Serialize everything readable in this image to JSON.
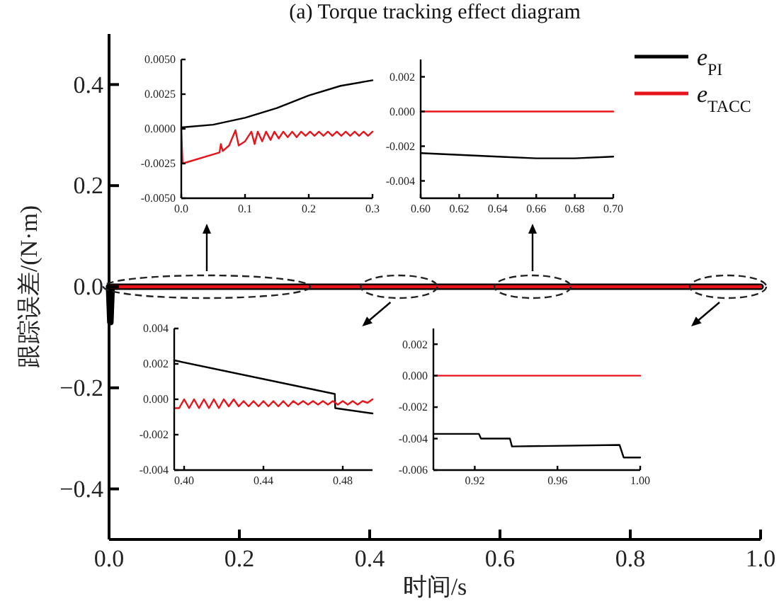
{
  "chart_data": [
    {
      "type": "line",
      "title": "(a) Torque tracking effect diagram",
      "xlabel": "时间/s",
      "ylabel": "跟踪误差/(N·m)",
      "legend": "top right",
      "xlim": [
        0,
        1
      ],
      "ylim": [
        -0.5,
        0.5
      ],
      "xticks": [
        {
          "value": 0,
          "label": "0.0"
        },
        0.2,
        0.4,
        0.6,
        0.8,
        {
          "value": 1,
          "label": "1.0"
        }
      ],
      "yticks": [
        0.4,
        0.2,
        {
          "value": 0,
          "label": "0.0"
        },
        {
          "value": -0.2,
          "label": "−0.2"
        },
        {
          "value": -0.4,
          "label": "−0.4"
        }
      ],
      "series": [
        {
          "name": "*e*$_{PI}$",
          "color": "#000000",
          "x": [
            0,
            0.002,
            0.004,
            1.0
          ],
          "values": [
            0,
            -0.07,
            0,
            0
          ]
        },
        {
          "name": "*e*$_{TACC}$",
          "color": "#e8141c",
          "x": [
            0,
            1.0
          ],
          "values": [
            0,
            0
          ]
        }
      ]
    },
    {
      "type": "line",
      "xlim": [
        0,
        0.3
      ],
      "ylim": [
        -0.005,
        0.005
      ],
      "xticks": [
        {
          "value": 0,
          "label": "0.0"
        },
        0.1,
        0.2,
        0.3
      ],
      "yticks": [
        {
          "value": 0.005,
          "label": "0.0050"
        },
        {
          "value": 0.0025,
          "label": "0.0025"
        },
        {
          "value": 0,
          "label": "0.0000"
        },
        {
          "value": -0.0025,
          "label": "-0.0025"
        },
        {
          "value": -0.005,
          "label": "-0.0050"
        }
      ],
      "series": [
        {
          "color": "#000000",
          "x": [
            0,
            0.05,
            0.1,
            0.15,
            0.2,
            0.25,
            0.3
          ],
          "values": [
            0.0001,
            0.0003,
            0.0008,
            0.0015,
            0.0024,
            0.0031,
            0.0035
          ]
        },
        {
          "color": "#e8141c",
          "x": [
            0,
            0.002,
            0.06,
            0.062,
            0.065,
            0.075,
            0.085,
            0.09,
            0.1,
            0.11,
            0.115,
            0.12,
            0.127,
            0.133,
            0.14,
            0.146,
            0.153,
            0.16,
            0.167,
            0.174,
            0.181,
            0.188,
            0.195,
            0.202,
            0.209,
            0.216,
            0.223,
            0.23,
            0.237,
            0.244,
            0.251,
            0.258,
            0.265,
            0.272,
            0.279,
            0.286,
            0.293,
            0.3
          ],
          "values": [
            0,
            -0.0025,
            -0.0017,
            -0.0011,
            -0.0016,
            -0.0012,
            -0.0001,
            -0.0012,
            -0.0009,
            -0.0002,
            -0.0011,
            -0.0002,
            -0.0009,
            -0.0002,
            -0.0008,
            -0.0002,
            -0.0007,
            -0.0002,
            -0.0006,
            -0.0002,
            -0.0006,
            -0.0002,
            -0.0005,
            -0.0002,
            -0.0005,
            -0.0002,
            -0.0005,
            -0.0002,
            -0.0005,
            -0.0002,
            -0.0005,
            -0.0002,
            -0.0005,
            -0.0002,
            -0.0005,
            -0.0002,
            -0.0005,
            -0.0002
          ]
        }
      ]
    },
    {
      "type": "line",
      "xlim": [
        0.6,
        0.7
      ],
      "ylim": [
        -0.005,
        0.003
      ],
      "xticks": [
        {
          "value": 0.6,
          "label": "0.60"
        },
        0.62,
        0.64,
        0.66,
        0.68,
        {
          "value": 0.7,
          "label": "0.70"
        }
      ],
      "yticks": [
        {
          "value": 0.002,
          "label": "0.002"
        },
        {
          "value": 0,
          "label": "0.000"
        },
        {
          "value": -0.002,
          "label": "-0.002"
        },
        {
          "value": -0.004,
          "label": "-0.004"
        }
      ],
      "series": [
        {
          "color": "#000000",
          "x": [
            0.6,
            0.62,
            0.64,
            0.66,
            0.68,
            0.7
          ],
          "values": [
            -0.0024,
            -0.0025,
            -0.0026,
            -0.0027,
            -0.0027,
            -0.0026
          ]
        },
        {
          "color": "#e8141c",
          "x": [
            0.6,
            0.7
          ],
          "values": [
            0,
            0
          ]
        }
      ]
    },
    {
      "type": "line",
      "xlim": [
        0.395,
        0.495
      ],
      "ylim": [
        -0.004,
        0.004
      ],
      "xticks": [
        {
          "value": 0.4,
          "label": "0.40"
        },
        0.44,
        0.48
      ],
      "yticks": [
        {
          "value": 0.004,
          "label": "0.004"
        },
        {
          "value": 0.002,
          "label": "0.002"
        },
        {
          "value": 0,
          "label": "0.000"
        },
        {
          "value": -0.002,
          "label": "-0.002"
        },
        {
          "value": -0.004,
          "label": "-0.004"
        }
      ],
      "series": [
        {
          "color": "#000000",
          "x": [
            0.395,
            0.476,
            0.4762,
            0.495
          ],
          "values": [
            0.0022,
            0.0003,
            -0.0005,
            -0.0008
          ]
        },
        {
          "color": "#e8141c",
          "x": [
            0.395,
            0.3975,
            0.4,
            0.4025,
            0.405,
            0.4075,
            0.41,
            0.4125,
            0.415,
            0.4175,
            0.42,
            0.4225,
            0.425,
            0.4275,
            0.43,
            0.4325,
            0.435,
            0.4375,
            0.44,
            0.4425,
            0.445,
            0.4475,
            0.45,
            0.4525,
            0.455,
            0.4575,
            0.46,
            0.4625,
            0.465,
            0.4675,
            0.47,
            0.4725,
            0.475,
            0.4775,
            0.48,
            0.4825,
            0.485,
            0.4875,
            0.49,
            0.4925,
            0.495
          ],
          "values": [
            -0.0005,
            -0.0005,
            0,
            -0.0005,
            0,
            -0.0005,
            0,
            -0.0005,
            0,
            -0.0005,
            0,
            -0.0004,
            0,
            -0.0004,
            -0.0001,
            -0.0004,
            -0.0001,
            -0.0004,
            -0.0001,
            -0.0004,
            -0.0001,
            -0.0004,
            -0.0001,
            -0.0004,
            -0.0001,
            -0.0003,
            -0.0001,
            -0.0003,
            -0.0001,
            -0.0003,
            -0.0001,
            -0.0003,
            -0.0001,
            -0.0003,
            -0.0001,
            -0.0003,
            -0.0001,
            -0.0003,
            -0.0001,
            -0.0002,
            0
          ]
        }
      ]
    },
    {
      "type": "line",
      "xlim": [
        0.9,
        1.0
      ],
      "ylim": [
        -0.006,
        0.003
      ],
      "xticks": [
        0.92,
        0.96,
        {
          "value": 1.0,
          "label": "1.00"
        }
      ],
      "yticks": [
        {
          "value": 0.002,
          "label": "0.002"
        },
        {
          "value": 0,
          "label": "0.000"
        },
        {
          "value": -0.002,
          "label": "-0.002"
        },
        {
          "value": -0.004,
          "label": "-0.004"
        },
        {
          "value": -0.006,
          "label": "-0.006"
        }
      ],
      "series": [
        {
          "color": "#000000",
          "x": [
            0.9,
            0.922,
            0.923,
            0.937,
            0.938,
            0.99,
            0.992,
            1.0
          ],
          "values": [
            -0.0037,
            -0.0037,
            -0.004,
            -0.004,
            -0.0045,
            -0.0044,
            -0.0052,
            -0.0052
          ]
        },
        {
          "color": "#e8141c",
          "x": [
            0.9,
            1.0
          ],
          "values": [
            0,
            0
          ]
        }
      ]
    }
  ]
}
